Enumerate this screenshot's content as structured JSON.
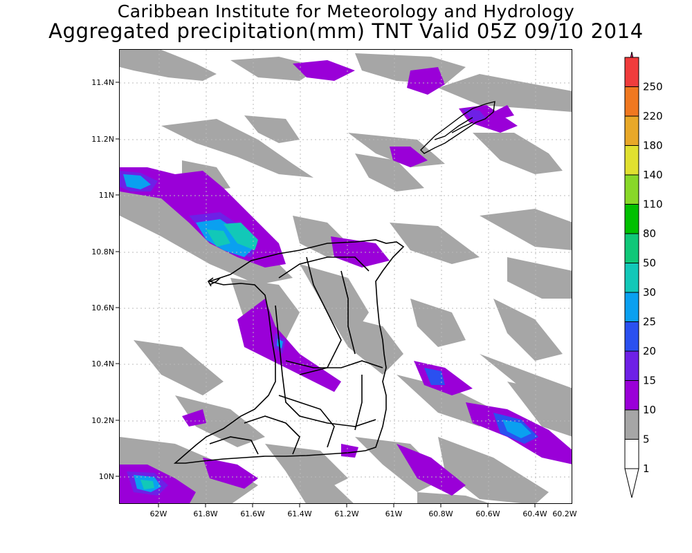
{
  "header": {
    "title": "Caribbean Institute for Meteorology and Hydrology",
    "subtitle": "Aggregated precipitation(mm) TNT Valid 05Z 09/10 2014"
  },
  "map": {
    "x_ticks": [
      "62W",
      "61.8W",
      "61.6W",
      "61.4W",
      "61.2W",
      "61W",
      "60.8W",
      "60.6W",
      "60.4W",
      "60.2W"
    ],
    "y_ticks": [
      "11.4N",
      "11.2N",
      "11N",
      "10.8N",
      "10.6N",
      "10.4N",
      "10.2N",
      "10N"
    ],
    "lon_range": [
      -62.17,
      -60.15
    ],
    "lat_range": [
      9.9,
      11.52
    ],
    "grid": true
  },
  "legend": {
    "levels": [
      {
        "label": "1",
        "color": "#ffffff"
      },
      {
        "label": "5",
        "color": "#a6a6a6"
      },
      {
        "label": "10",
        "color": "#9a00d8"
      },
      {
        "label": "15",
        "color": "#6e20e6"
      },
      {
        "label": "20",
        "color": "#2a50f0"
      },
      {
        "label": "25",
        "color": "#0aa0f0"
      },
      {
        "label": "30",
        "color": "#12c8b8"
      },
      {
        "label": "50",
        "color": "#10c878"
      },
      {
        "label": "80",
        "color": "#00c000"
      },
      {
        "label": "110",
        "color": "#88d828"
      },
      {
        "label": "140",
        "color": "#e0e030"
      },
      {
        "label": "180",
        "color": "#e8a828"
      },
      {
        "label": "220",
        "color": "#f07820"
      },
      {
        "label": "250",
        "color": "#f03c3c"
      }
    ],
    "top_arrow_color": "#e8166e"
  }
}
